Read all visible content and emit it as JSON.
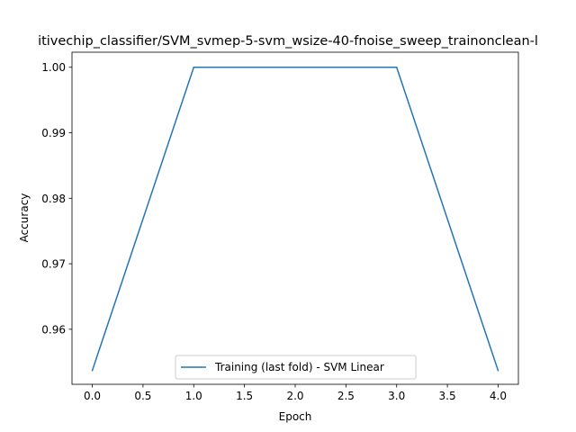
{
  "chart_data": {
    "type": "line",
    "title": "itivechip_classifier/SVM_svmep-5-svm_wsize-40-fnoise_sweep_trainonclean-l",
    "xlabel": "Epoch",
    "ylabel": "Accuracy",
    "xlim": [
      -0.2,
      4.2
    ],
    "ylim": [
      0.9516,
      1.0023
    ],
    "xticks": [
      0.0,
      0.5,
      1.0,
      1.5,
      2.0,
      2.5,
      3.0,
      3.5,
      4.0
    ],
    "xtick_labels": [
      "0.0",
      "0.5",
      "1.0",
      "1.5",
      "2.0",
      "2.5",
      "3.0",
      "3.5",
      "4.0"
    ],
    "yticks": [
      0.96,
      0.97,
      0.98,
      0.99,
      1.0
    ],
    "ytick_labels": [
      "0.96",
      "0.97",
      "0.98",
      "0.99",
      "1.00"
    ],
    "grid": false,
    "legend_position": "lower-center",
    "series": [
      {
        "name": "Training (last fold) - SVM Linear",
        "color": "#1f77b4",
        "x": [
          0,
          1,
          2,
          3,
          4
        ],
        "y": [
          0.9537,
          1.0,
          1.0,
          1.0,
          0.9537
        ]
      }
    ]
  }
}
